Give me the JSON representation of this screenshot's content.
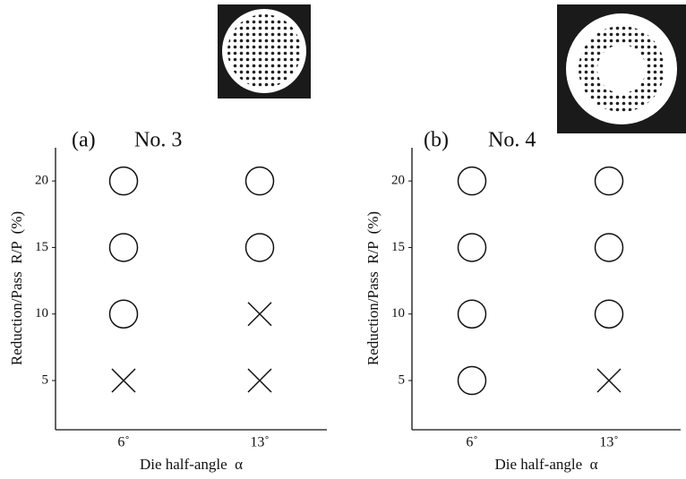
{
  "chart_data": [
    {
      "type": "scatter",
      "panel_label": "(a)",
      "title": "No. 3",
      "ylabel": "Reduction/Pass  R/P  (%)",
      "xlabel": "Die half-angle  α",
      "categories": [
        "6˚",
        "13˚"
      ],
      "ylim": [
        1.3,
        22.5
      ],
      "yticks": [
        5,
        10,
        15,
        20
      ],
      "series": [
        {
          "marker": "circle",
          "color": "#111111",
          "x": [
            "6˚",
            "6˚",
            "6˚",
            "13˚",
            "13˚"
          ],
          "values": [
            20,
            15,
            10,
            20,
            15
          ]
        },
        {
          "marker": "cross",
          "color": "#111111",
          "x": [
            "6˚",
            "13˚",
            "13˚"
          ],
          "values": [
            5,
            10,
            5
          ]
        }
      ]
    },
    {
      "type": "scatter",
      "panel_label": "(b)",
      "title": "No. 4",
      "ylabel": "Reduction/Pass  R/P  (%)",
      "xlabel": "Die half-angle  α",
      "categories": [
        "6˚",
        "13˚"
      ],
      "ylim": [
        1.3,
        22.5
      ],
      "yticks": [
        5,
        10,
        15,
        20
      ],
      "series": [
        {
          "marker": "circle",
          "color": "#111111",
          "x": [
            "6˚",
            "6˚",
            "6˚",
            "6˚",
            "13˚",
            "13˚",
            "13˚"
          ],
          "values": [
            20,
            15,
            10,
            5,
            20,
            15,
            10
          ]
        },
        {
          "marker": "cross",
          "color": "#111111",
          "x": [
            "13˚"
          ],
          "values": [
            5
          ]
        }
      ]
    }
  ]
}
